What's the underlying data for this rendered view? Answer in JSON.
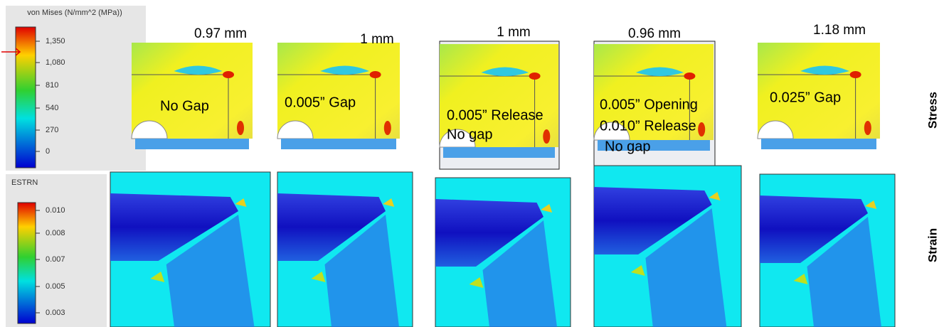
{
  "stress_legend": {
    "title": "von Mises (N/mm^2 (MPa))",
    "ticks": [
      "1,350",
      "1,080",
      "810",
      "540",
      "270",
      "0"
    ]
  },
  "strain_legend": {
    "title": "ESTRN",
    "ticks": [
      "0.010",
      "0.008",
      "0.007",
      "0.005",
      "0.003"
    ]
  },
  "panels": [
    {
      "displacement": "0.97 mm",
      "label": [
        "No Gap"
      ]
    },
    {
      "displacement": "1 mm",
      "label": [
        "0.005” Gap"
      ]
    },
    {
      "displacement": "1 mm",
      "label": [
        "0.005” Release",
        "No gap"
      ]
    },
    {
      "displacement": "0.96 mm",
      "label": [
        "0.005” Opening",
        "0.010” Release",
        "No gap"
      ]
    },
    {
      "displacement": "1.18 mm",
      "label": [
        "0.025” Gap"
      ]
    }
  ],
  "row_labels": [
    "Stress",
    "Strain"
  ]
}
